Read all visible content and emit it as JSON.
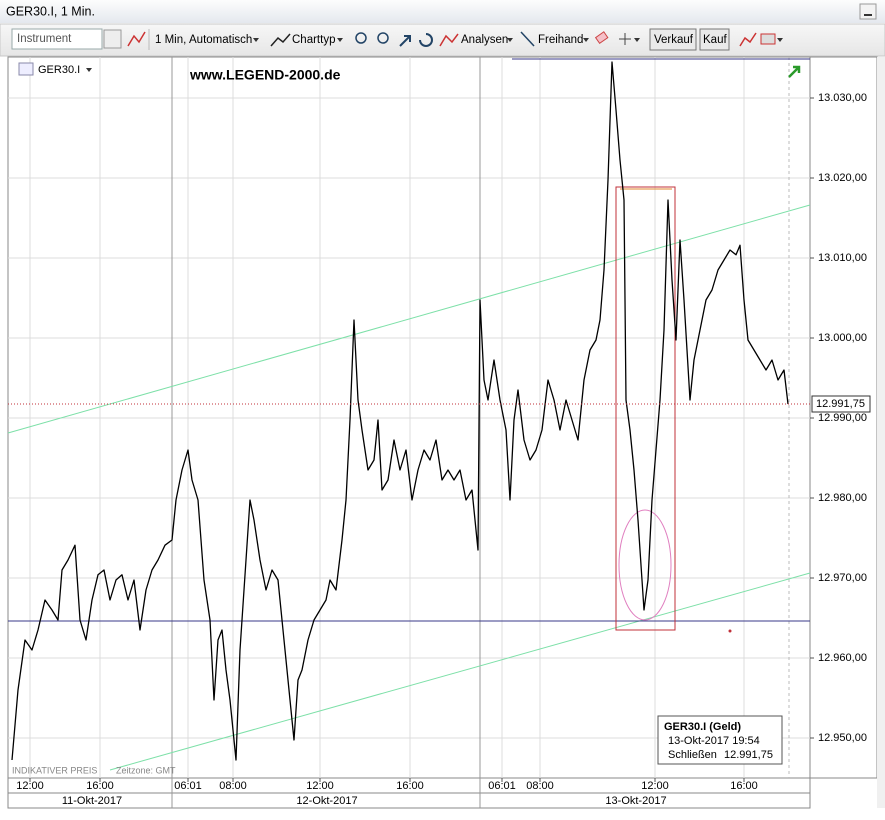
{
  "window": {
    "title": "GER30.I, 1 Min."
  },
  "toolbar": {
    "instrument_placeholder": "Instrument",
    "interval": "1 Min,",
    "scale": "Automatisch",
    "chart_type": "Charttyp",
    "analyses": "Analysen",
    "freehand": "Freihand",
    "sell": "Verkauf",
    "buy": "Kauf"
  },
  "chart_header": {
    "symbol": "GER30.I",
    "watermark": "www.LEGEND-2000.de"
  },
  "footer": {
    "price_note": "INDIKATIVER PREIS",
    "timezone": "Zeitzone: GMT"
  },
  "info_box": {
    "title": "GER30.I (Geld)",
    "time": "13-Okt-2017 19:54",
    "close_label": "Schließen",
    "close_value": "12.991,75"
  },
  "chart_data": {
    "type": "line",
    "color": "#000000",
    "grid": true,
    "xlim": [
      0,
      802
    ],
    "ylim": [
      12945,
      13035.125
    ],
    "xticks": [
      {
        "value": 22,
        "label": "12:00"
      },
      {
        "value": 92,
        "label": "16:00"
      },
      {
        "value": 180,
        "label": "06:01"
      },
      {
        "value": 225,
        "label": "08:00"
      },
      {
        "value": 312,
        "label": "12:00"
      },
      {
        "value": 402,
        "label": "16:00"
      },
      {
        "value": 494,
        "label": "06:01"
      },
      {
        "value": 532,
        "label": "08:00"
      },
      {
        "value": 647,
        "label": "12:00"
      },
      {
        "value": 736,
        "label": "16:00"
      }
    ],
    "x_date_labels": [
      "11-Okt-2017",
      "12-Okt-2017",
      "13-Okt-2017"
    ],
    "yticks": [
      {
        "value": 12950,
        "label": "12.950,00"
      },
      {
        "value": 12960,
        "label": "12.960,00"
      },
      {
        "value": 12970,
        "label": "12.970,00"
      },
      {
        "value": 12980,
        "label": "12.980,00"
      },
      {
        "value": 12990,
        "label": "12.990,00"
      },
      {
        "value": 13000,
        "label": "13.000,00"
      },
      {
        "value": 13010,
        "label": "13.010,00"
      },
      {
        "value": 13020,
        "label": "13.020,00"
      },
      {
        "value": 13030,
        "label": "13.030,00"
      }
    ],
    "last_value_label": "12.991,75",
    "x": [
      4,
      10,
      17,
      24,
      30,
      37,
      44,
      50,
      54,
      60,
      67,
      72,
      78,
      84,
      90,
      96,
      102,
      108,
      114,
      120,
      126,
      132,
      138,
      144,
      150,
      157,
      164,
      168,
      174,
      180,
      184,
      190,
      196,
      202,
      206,
      210,
      214,
      218,
      222,
      228,
      232,
      238,
      242,
      246,
      252,
      258,
      264,
      270,
      276,
      282,
      286,
      290,
      294,
      300,
      306,
      312,
      318,
      322,
      328,
      334,
      338,
      342,
      346,
      350,
      354,
      360,
      366,
      370,
      374,
      380,
      386,
      392,
      398,
      404,
      410,
      416,
      422,
      428,
      434,
      440,
      446,
      452,
      458,
      464,
      470,
      472,
      476,
      480,
      486,
      492,
      498,
      502,
      506,
      510,
      516,
      522,
      528,
      534,
      540,
      546,
      552,
      558,
      564,
      570,
      576,
      582,
      588,
      592,
      596,
      600,
      604,
      608,
      612,
      616,
      618,
      622,
      626,
      630,
      636,
      640,
      644,
      648,
      652,
      656,
      660,
      664,
      668,
      672,
      676,
      682,
      686,
      692,
      698,
      704,
      710,
      716,
      722,
      728,
      732,
      736,
      740,
      746,
      752,
      758,
      764,
      770,
      776,
      780
    ],
    "values": [
      12947.25,
      12956,
      12962.25,
      12961,
      12963.5,
      12967.25,
      12966,
      12964.75,
      12971,
      12972.25,
      12974.1,
      12964.75,
      12962.25,
      12967.25,
      12970.4,
      12971,
      12967.25,
      12969.75,
      12970.4,
      12967.25,
      12969.75,
      12963.5,
      12968.5,
      12971,
      12972.25,
      12974.1,
      12974.75,
      12979.75,
      12983.5,
      12986,
      12982.25,
      12979.75,
      12969.75,
      12964.75,
      12954.75,
      12962.25,
      12963.5,
      12958.5,
      12954.75,
      12947.25,
      12961,
      12972.25,
      12979.75,
      12977.25,
      12972.25,
      12968.5,
      12971,
      12969.75,
      12962.25,
      12954.75,
      12949.75,
      12957.25,
      12958.5,
      12962.25,
      12964.75,
      12966,
      12967.25,
      12969.75,
      12968.5,
      12974.75,
      12979.75,
      12989.75,
      13002.25,
      12992.25,
      12988.5,
      12983.5,
      12984.75,
      12989.75,
      12981,
      12982.25,
      12987.25,
      12983.5,
      12986,
      12979.75,
      12983.5,
      12986,
      12984.75,
      12987.25,
      12982.25,
      12983.5,
      12982.25,
      12983.5,
      12979.75,
      12981,
      12973.5,
      13004.75,
      12994.75,
      12992.25,
      12997.25,
      12992.25,
      12988.5,
      12979.75,
      12989.75,
      12993.5,
      12987.25,
      12984.75,
      12986,
      12988.5,
      12994.75,
      12992.25,
      12988.5,
      12992.25,
      12989.75,
      12987.25,
      12994.75,
      12998.5,
      12999.75,
      13002.25,
      13008.5,
      13019.75,
      13034.5,
      13028.5,
      13022.25,
      13017.25,
      12992.25,
      12988.5,
      12983.5,
      12977.25,
      12966,
      12969.75,
      12979.75,
      12986,
      12992.25,
      13001,
      13017.25,
      13007.25,
      12999.75,
      13012.25,
      13004.75,
      12992.25,
      12997.25,
      13001,
      13004.75,
      13006,
      13008.5,
      13009.75,
      13011,
      13010.4,
      13011.6,
      13004.75,
      12999.75,
      12998.5,
      12997.25,
      12996,
      12997.25,
      12994.75,
      12996,
      12991.75
    ]
  }
}
